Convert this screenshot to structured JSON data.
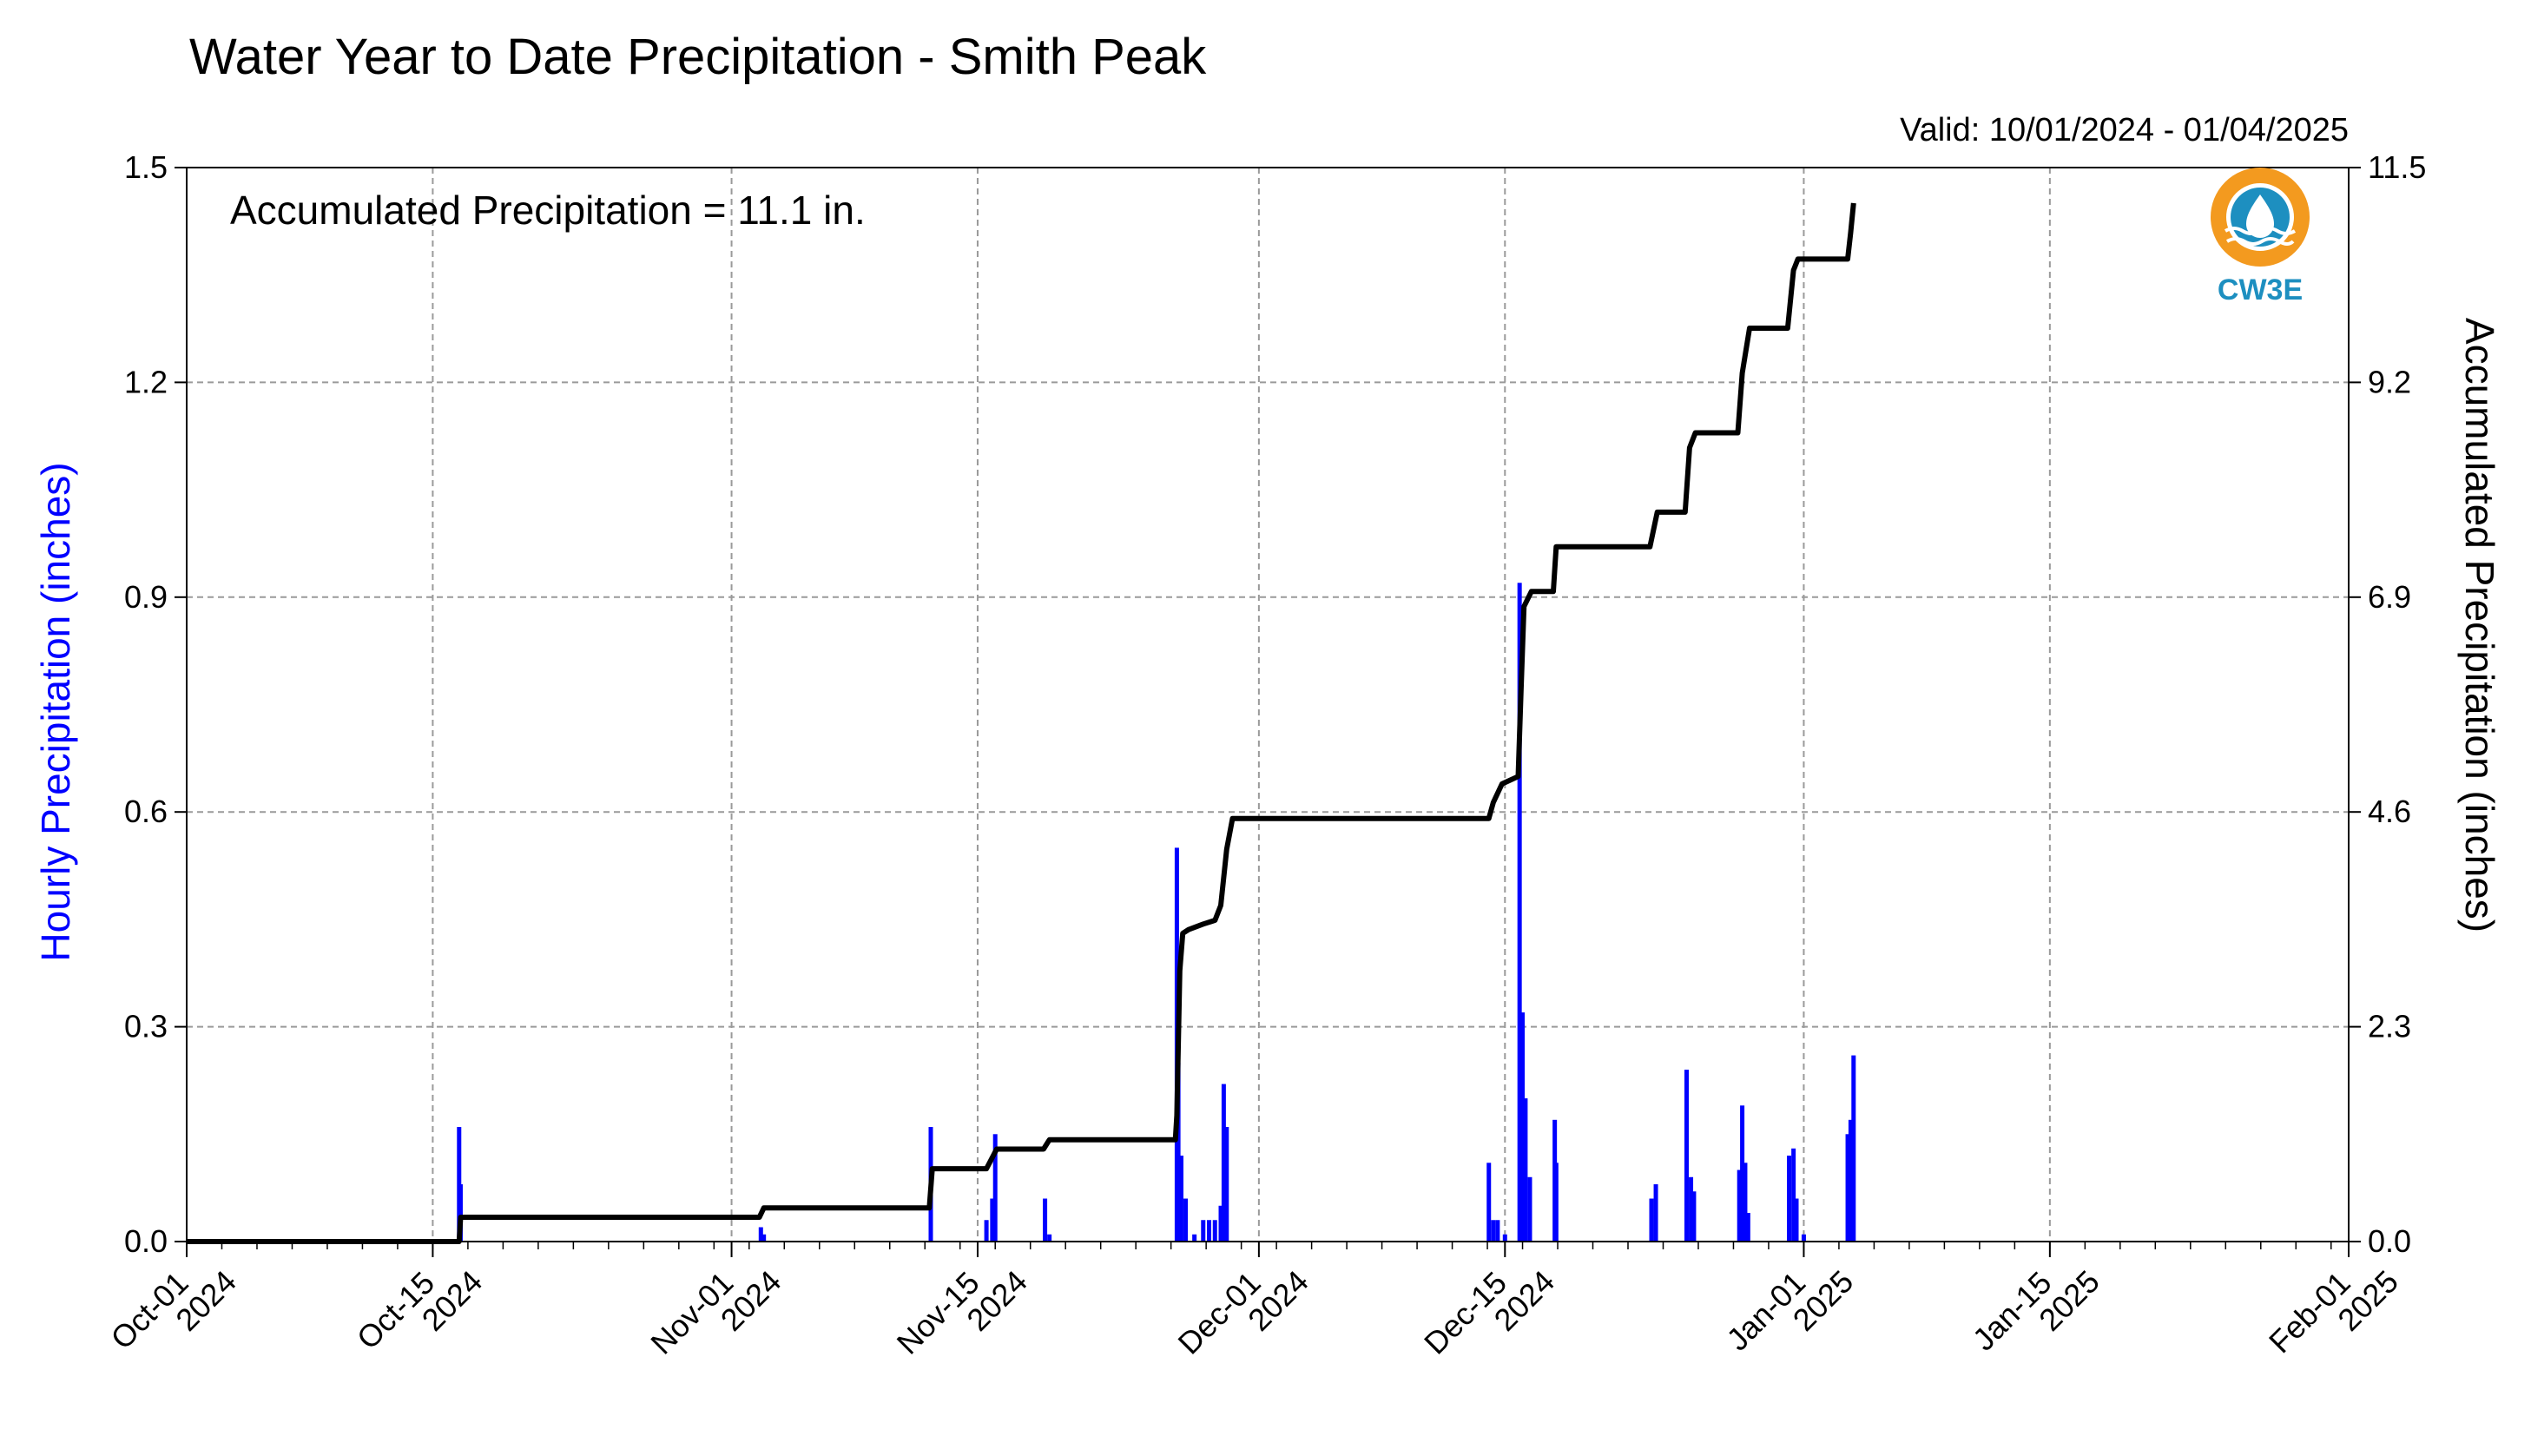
{
  "chart_data": {
    "type": "bar",
    "title": "Water Year to Date Precipitation - Smith Peak",
    "subtitle": "Valid: 10/01/2024 - 01/04/2025",
    "annotation": "Accumulated Precipitation = 11.1 in.",
    "ylabel": "Hourly Precipitation (inches)",
    "y2label": "Accumulated Precipitation (inches)",
    "ylim": [
      0,
      1.5
    ],
    "y2lim": [
      0,
      11.5
    ],
    "xlim": [
      "2024-10-01",
      "2025-02-01"
    ],
    "grid": true,
    "colors": {
      "hourly": "#0000ff",
      "accumulated": "#000000",
      "ylabel_left": "#0000ff"
    },
    "y_ticks": [
      "0.0",
      "0.3",
      "0.6",
      "0.9",
      "1.2",
      "1.5"
    ],
    "y2_ticks": [
      "0.0",
      "2.3",
      "4.6",
      "6.9",
      "9.2",
      "11.5"
    ],
    "x_ticks": [
      {
        "date": "2024-10-01",
        "line1": "Oct-01",
        "line2": "2024"
      },
      {
        "date": "2024-10-15",
        "line1": "Oct-15",
        "line2": "2024"
      },
      {
        "date": "2024-11-01",
        "line1": "Nov-01",
        "line2": "2024"
      },
      {
        "date": "2024-11-15",
        "line1": "Nov-15",
        "line2": "2024"
      },
      {
        "date": "2024-12-01",
        "line1": "Dec-01",
        "line2": "2024"
      },
      {
        "date": "2024-12-15",
        "line1": "Dec-15",
        "line2": "2024"
      },
      {
        "date": "2025-01-01",
        "line1": "Jan-01",
        "line2": "2025"
      },
      {
        "date": "2025-01-15",
        "line1": "Jan-15",
        "line2": "2025"
      },
      {
        "date": "2025-02-01",
        "line1": "Feb-01",
        "line2": "2025"
      }
    ],
    "series": [
      {
        "name": "Hourly Precipitation",
        "kind": "bar",
        "axis": "left",
        "points": [
          [
            "2024-10-16T12:00",
            0.16
          ],
          [
            "2024-10-16T14:00",
            0.08
          ],
          [
            "2024-11-02T16:00",
            0.02
          ],
          [
            "2024-11-02T20:00",
            0.01
          ],
          [
            "2024-11-12T08:00",
            0.16
          ],
          [
            "2024-11-15T12:00",
            0.03
          ],
          [
            "2024-11-16T00:00",
            0.15
          ],
          [
            "2024-11-15T20:00",
            0.06
          ],
          [
            "2024-11-18T20:00",
            0.06
          ],
          [
            "2024-11-19T02:00",
            0.01
          ],
          [
            "2024-11-26T08:00",
            0.55
          ],
          [
            "2024-11-26T10:00",
            0.25
          ],
          [
            "2024-11-26T14:00",
            0.12
          ],
          [
            "2024-11-26T20:00",
            0.06
          ],
          [
            "2024-11-27T08:00",
            0.01
          ],
          [
            "2024-11-27T20:00",
            0.03
          ],
          [
            "2024-11-28T04:00",
            0.03
          ],
          [
            "2024-11-28T12:00",
            0.03
          ],
          [
            "2024-11-29T00:00",
            0.22
          ],
          [
            "2024-11-29T04:00",
            0.16
          ],
          [
            "2024-11-28T20:00",
            0.05
          ],
          [
            "2024-12-14T02:00",
            0.11
          ],
          [
            "2024-12-14T08:00",
            0.03
          ],
          [
            "2024-12-14T14:00",
            0.03
          ],
          [
            "2024-12-15T00:00",
            0.01
          ],
          [
            "2024-12-15T20:00",
            0.92
          ],
          [
            "2024-12-16T00:00",
            0.32
          ],
          [
            "2024-12-16T04:00",
            0.2
          ],
          [
            "2024-12-16T10:00",
            0.09
          ],
          [
            "2024-12-17T20:00",
            0.17
          ],
          [
            "2024-12-17T22:00",
            0.11
          ],
          [
            "2024-12-23T08:00",
            0.06
          ],
          [
            "2024-12-23T14:00",
            0.08
          ],
          [
            "2024-12-25T08:00",
            0.24
          ],
          [
            "2024-12-25T14:00",
            0.09
          ],
          [
            "2024-12-25T18:00",
            0.07
          ],
          [
            "2024-12-28T08:00",
            0.1
          ],
          [
            "2024-12-28T12:00",
            0.19
          ],
          [
            "2024-12-28T16:00",
            0.11
          ],
          [
            "2024-12-28T20:00",
            0.04
          ],
          [
            "2024-12-31T04:00",
            0.12
          ],
          [
            "2024-12-31T10:00",
            0.13
          ],
          [
            "2024-12-31T14:00",
            0.06
          ],
          [
            "2025-01-01T00:00",
            0.01
          ],
          [
            "2025-01-03T20:00",
            0.26
          ],
          [
            "2025-01-03T16:00",
            0.17
          ],
          [
            "2025-01-03T12:00",
            0.15
          ]
        ]
      },
      {
        "name": "Accumulated Precipitation",
        "kind": "step-line",
        "axis": "right",
        "points": [
          [
            "2024-10-01T00:00",
            0.0
          ],
          [
            "2024-10-16T12:00",
            0.0
          ],
          [
            "2024-10-16T14:00",
            0.26
          ],
          [
            "2024-11-02T14:00",
            0.26
          ],
          [
            "2024-11-02T20:00",
            0.36
          ],
          [
            "2024-11-12T06:00",
            0.36
          ],
          [
            "2024-11-12T10:00",
            0.78
          ],
          [
            "2024-11-15T12:00",
            0.78
          ],
          [
            "2024-11-16T02:00",
            0.99
          ],
          [
            "2024-11-18T18:00",
            0.99
          ],
          [
            "2024-11-19T02:00",
            1.09
          ],
          [
            "2024-11-26T06:00",
            1.09
          ],
          [
            "2024-11-26T08:00",
            1.35
          ],
          [
            "2024-11-26T12:00",
            2.9
          ],
          [
            "2024-11-26T16:00",
            3.3
          ],
          [
            "2024-11-27T00:00",
            3.34
          ],
          [
            "2024-11-27T20:00",
            3.4
          ],
          [
            "2024-11-28T12:00",
            3.44
          ],
          [
            "2024-11-28T20:00",
            3.6
          ],
          [
            "2024-11-29T04:00",
            4.2
          ],
          [
            "2024-11-29T12:00",
            4.53
          ],
          [
            "2024-12-14T02:00",
            4.53
          ],
          [
            "2024-12-14T08:00",
            4.7
          ],
          [
            "2024-12-14T20:00",
            4.9
          ],
          [
            "2024-12-15T18:00",
            4.98
          ],
          [
            "2024-12-15T22:00",
            5.9
          ],
          [
            "2024-12-16T02:00",
            6.8
          ],
          [
            "2024-12-16T12:00",
            6.96
          ],
          [
            "2024-12-17T18:00",
            6.96
          ],
          [
            "2024-12-17T22:00",
            7.44
          ],
          [
            "2024-12-23T06:00",
            7.44
          ],
          [
            "2024-12-23T16:00",
            7.81
          ],
          [
            "2024-12-25T06:00",
            7.81
          ],
          [
            "2024-12-25T12:00",
            8.5
          ],
          [
            "2024-12-25T20:00",
            8.66
          ],
          [
            "2024-12-28T06:00",
            8.66
          ],
          [
            "2024-12-28T12:00",
            9.3
          ],
          [
            "2024-12-28T22:00",
            9.78
          ],
          [
            "2024-12-31T02:00",
            9.78
          ],
          [
            "2024-12-31T10:00",
            10.4
          ],
          [
            "2024-12-31T16:00",
            10.52
          ],
          [
            "2025-01-03T12:00",
            10.52
          ],
          [
            "2025-01-03T16:00",
            10.8
          ],
          [
            "2025-01-03T20:00",
            11.12
          ]
        ]
      }
    ]
  },
  "logo": {
    "text": "CW3E",
    "colors": {
      "orange": "#f39a1f",
      "blue": "#1d8fc0",
      "navy": "#17577a"
    }
  }
}
